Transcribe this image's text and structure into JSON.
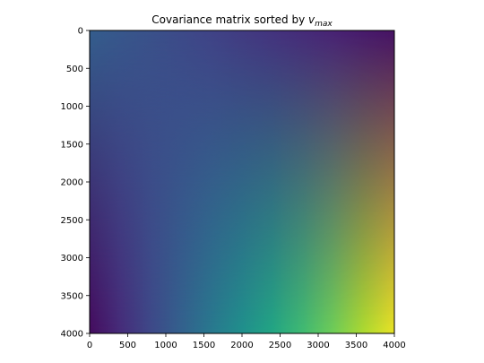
{
  "chart_data": {
    "type": "heatmap",
    "title": "Covariance matrix sorted by ",
    "title_math": "v",
    "title_math_sub": "max",
    "xlabel": "",
    "ylabel": "",
    "xlim": [
      0,
      4000
    ],
    "ylim": [
      4000,
      0
    ],
    "x_ticks": [
      0,
      500,
      1000,
      1500,
      2000,
      2500,
      3000,
      3500,
      4000
    ],
    "y_ticks": [
      0,
      500,
      1000,
      1500,
      2000,
      2500,
      3000,
      3500,
      4000
    ],
    "colormap": "viridis",
    "grid": false,
    "corner_values": {
      "top_left": 0.3,
      "top_right": 0.05,
      "bottom_left": 0.03,
      "bottom_right": 0.97
    }
  }
}
